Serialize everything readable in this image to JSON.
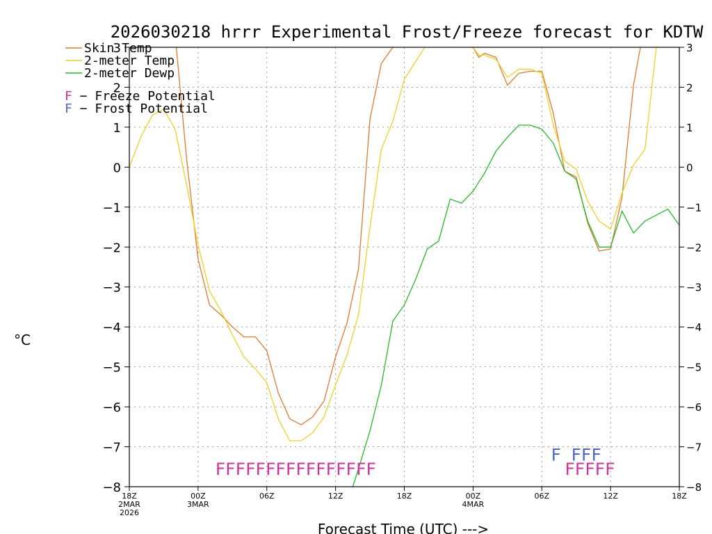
{
  "chart_data": {
    "type": "line",
    "title": "2026030218 hrrr Experimental Frost/Freeze forecast for KDTW",
    "ylabel": "°C",
    "xlabel": "Forecast Time (UTC) --->",
    "ylim": [
      -8,
      3
    ],
    "xlim": [
      0,
      48
    ],
    "yticks": [
      "3",
      "2",
      "1",
      "0",
      "−1",
      "−2",
      "−3",
      "−4",
      "−5",
      "−6",
      "−7",
      "−8"
    ],
    "xticks": [
      {
        "t": 0,
        "lines": [
          "18Z",
          "2MAR",
          "2026"
        ]
      },
      {
        "t": 6,
        "lines": [
          "00Z",
          "3MAR"
        ]
      },
      {
        "t": 12,
        "lines": [
          "06Z"
        ]
      },
      {
        "t": 18,
        "lines": [
          "12Z"
        ]
      },
      {
        "t": 24,
        "lines": [
          "18Z"
        ]
      },
      {
        "t": 30,
        "lines": [
          "00Z",
          "4MAR"
        ]
      },
      {
        "t": 36,
        "lines": [
          "06Z"
        ]
      },
      {
        "t": 42,
        "lines": [
          "12Z"
        ]
      },
      {
        "t": 48,
        "lines": [
          "18Z"
        ]
      }
    ],
    "series": [
      {
        "name": "Skin Temp",
        "color": "#e0782d",
        "x": [
          4.1,
          5,
          6,
          7,
          8,
          9,
          10,
          11,
          12,
          13,
          14,
          15,
          16,
          17,
          18,
          19,
          20,
          21,
          22,
          23,
          24,
          30,
          30.5,
          31,
          32,
          33,
          34,
          35,
          36,
          37,
          38,
          39,
          40,
          41,
          42,
          43,
          44,
          44.6
        ],
        "y": [
          3.0,
          0.2,
          -2.3,
          -3.45,
          -3.7,
          -4.0,
          -4.25,
          -4.25,
          -4.6,
          -5.65,
          -6.3,
          -6.45,
          -6.25,
          -5.85,
          -4.75,
          -3.9,
          -2.55,
          1.2,
          2.6,
          3.0,
          3.2,
          3.0,
          2.75,
          2.85,
          2.75,
          2.05,
          2.35,
          2.4,
          2.4,
          1.35,
          -0.1,
          -0.25,
          -1.4,
          -2.1,
          -2.05,
          -0.75,
          2.05,
          3.0
        ]
      },
      {
        "name": "2-meter Temp",
        "color": "#f0d020",
        "x": [
          0,
          1,
          2,
          3,
          4,
          5,
          6,
          7,
          8,
          9,
          10,
          11,
          12,
          13,
          14,
          15,
          16,
          17,
          18,
          19,
          20,
          21,
          22,
          23,
          24,
          25,
          26,
          30,
          30.5,
          31,
          32,
          33,
          34,
          35,
          36,
          37,
          38,
          39,
          40,
          41,
          42,
          43,
          44,
          45,
          46
        ],
        "y": [
          0.0,
          0.75,
          1.3,
          1.45,
          0.95,
          -0.45,
          -1.95,
          -3.1,
          -3.6,
          -4.2,
          -4.75,
          -5.05,
          -5.4,
          -6.3,
          -6.85,
          -6.85,
          -6.65,
          -6.25,
          -5.45,
          -4.7,
          -3.7,
          -1.5,
          0.45,
          1.15,
          2.2,
          2.65,
          3.1,
          3.0,
          2.8,
          2.8,
          2.7,
          2.25,
          2.45,
          2.45,
          2.35,
          1.05,
          0.15,
          -0.05,
          -0.85,
          -1.35,
          -1.55,
          -0.65,
          0.05,
          0.45,
          3.0
        ]
      },
      {
        "name": "2-meter Dewp",
        "color": "#22bb22",
        "x": [
          19.5,
          20,
          21,
          22,
          23,
          24,
          25,
          26,
          27,
          28,
          29,
          30,
          31,
          32,
          33,
          34,
          35,
          36,
          37,
          38,
          39,
          40,
          41,
          42,
          43,
          44,
          45,
          46,
          47,
          48
        ],
        "y": [
          -8.0,
          -7.55,
          -6.6,
          -5.45,
          -3.85,
          -3.45,
          -2.8,
          -2.05,
          -1.85,
          -0.8,
          -0.9,
          -0.6,
          -0.15,
          0.4,
          0.75,
          1.05,
          1.05,
          0.95,
          0.6,
          -0.1,
          -0.3,
          -1.35,
          -2.0,
          -2.0,
          -1.1,
          -1.65,
          -1.35,
          -1.2,
          -1.05,
          -1.45
        ]
      }
    ],
    "legend": [
      {
        "label": "Skin Temp",
        "color": "#e0782d"
      },
      {
        "label": "2-meter Temp",
        "color": "#f0d020"
      },
      {
        "label": "2-meter Dewp",
        "color": "#22bb22"
      }
    ],
    "flag_legend": [
      {
        "letter": "F",
        "label": " − Freeze Potential",
        "color": "#d0309a"
      },
      {
        "letter": "F",
        "label": " − Frost Potential",
        "color": "#4a68d8"
      }
    ],
    "flag_rows": [
      {
        "text": "FFFFFFFFFFFFFFFF",
        "color": "#d0309a"
      },
      {
        "text": "F FFF",
        "color": "#4a68d8"
      },
      {
        "text": "FFFFF",
        "color": "#d0309a"
      }
    ]
  }
}
